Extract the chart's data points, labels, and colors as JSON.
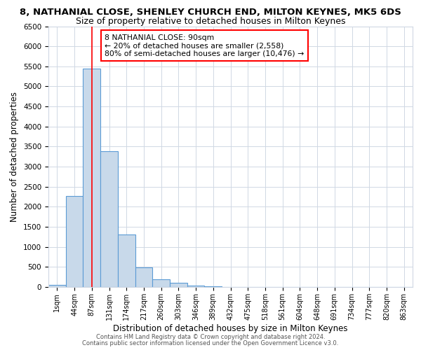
{
  "title1": "8, NATHANIAL CLOSE, SHENLEY CHURCH END, MILTON KEYNES, MK5 6DS",
  "title2": "Size of property relative to detached houses in Milton Keynes",
  "xlabel": "Distribution of detached houses by size in Milton Keynes",
  "ylabel": "Number of detached properties",
  "bar_labels": [
    "1sqm",
    "44sqm",
    "87sqm",
    "131sqm",
    "174sqm",
    "217sqm",
    "260sqm",
    "303sqm",
    "346sqm",
    "389sqm",
    "432sqm",
    "475sqm",
    "518sqm",
    "561sqm",
    "604sqm",
    "648sqm",
    "691sqm",
    "734sqm",
    "777sqm",
    "820sqm",
    "863sqm"
  ],
  "bar_values": [
    60,
    2270,
    5450,
    3390,
    1310,
    480,
    190,
    100,
    40,
    10,
    5,
    5,
    0,
    0,
    0,
    0,
    0,
    0,
    0,
    0,
    0
  ],
  "bar_color": "#c8d9ea",
  "bar_edge_color": "#5b9bd5",
  "red_line_x": 2,
  "ylim": [
    0,
    6500
  ],
  "yticks": [
    0,
    500,
    1000,
    1500,
    2000,
    2500,
    3000,
    3500,
    4000,
    4500,
    5000,
    5500,
    6000,
    6500
  ],
  "annotation_title": "8 NATHANIAL CLOSE: 90sqm",
  "annotation_line1": "← 20% of detached houses are smaller (2,558)",
  "annotation_line2": "80% of semi-detached houses are larger (10,476) →",
  "footer1": "Contains HM Land Registry data © Crown copyright and database right 2024.",
  "footer2": "Contains public sector information licensed under the Open Government Licence v3.0.",
  "bg_color": "#ffffff",
  "grid_color": "#d0d8e4",
  "title1_fontsize": 9.5,
  "title2_fontsize": 9,
  "xlabel_fontsize": 8.5,
  "ylabel_fontsize": 8.5,
  "footer_fontsize": 6.0
}
